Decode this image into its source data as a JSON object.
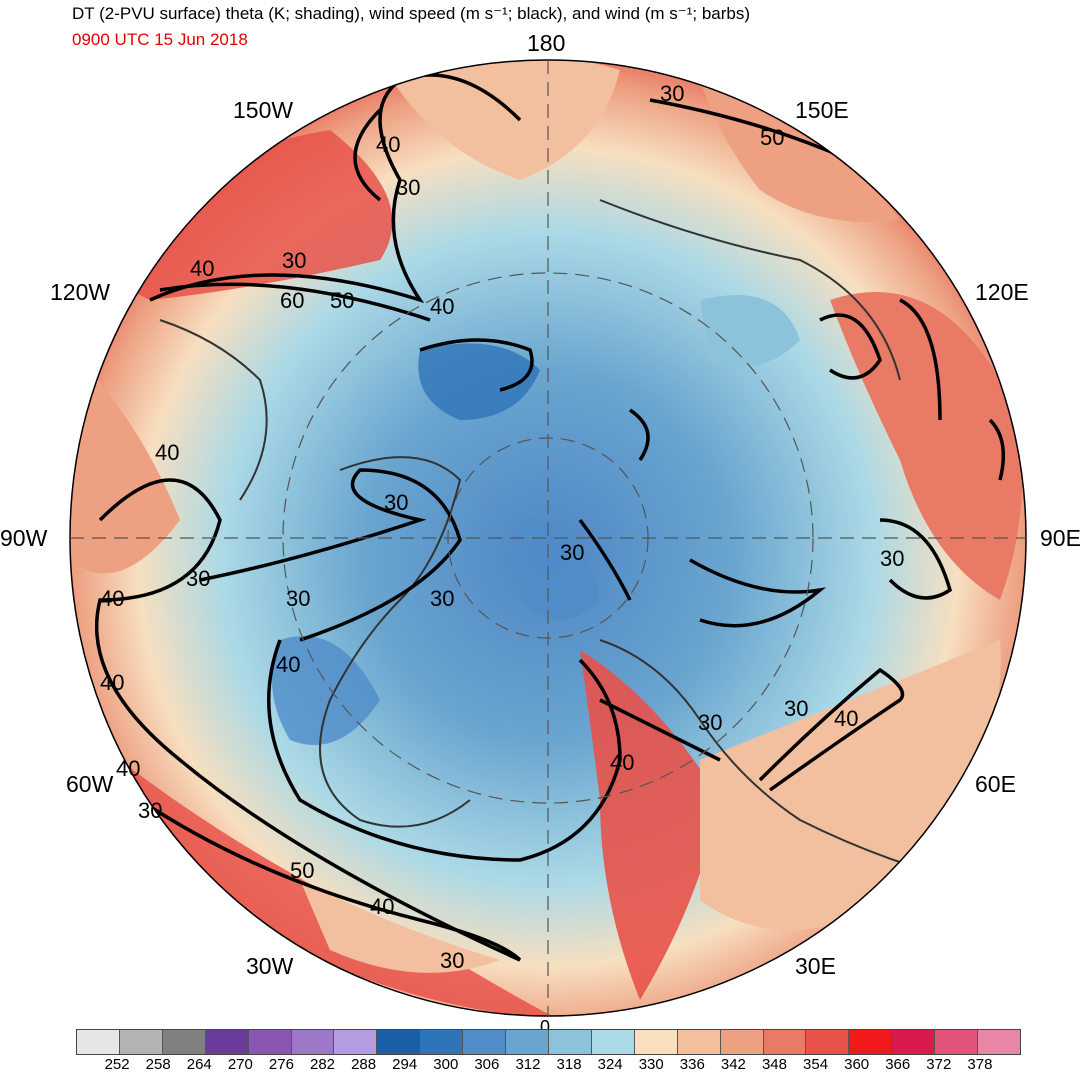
{
  "header": {
    "title": "DT (2-PVU surface) theta (K; shading), wind speed (m s⁻¹; black), and wind (m s⁻¹; barbs)",
    "valid_time": "0900 UTC 15 Jun 2018"
  },
  "map": {
    "projection": "north-polar-stereographic",
    "longitude_labels": [
      "180",
      "150E",
      "120E",
      "90E",
      "60E",
      "30E",
      "0",
      "30W",
      "60W",
      "90W",
      "120W",
      "150W"
    ],
    "wind_speed_contour_labels": [
      "30",
      "40",
      "50",
      "60"
    ],
    "colors": {
      "ocean_cold": "#4f86c6",
      "ocean_cool": "#a7d9e3",
      "warm": "#f2b28c",
      "hot": "#ea3b33",
      "contour": "#000000",
      "coastline": "#333333"
    }
  },
  "colorbar": {
    "ticks": [
      "252",
      "258",
      "264",
      "270",
      "276",
      "282",
      "288",
      "294",
      "300",
      "306",
      "312",
      "318",
      "324",
      "330",
      "336",
      "342",
      "348",
      "354",
      "360",
      "366",
      "372",
      "378"
    ],
    "colors": [
      "#e6e6e6",
      "#b3b3b3",
      "#808080",
      "#6a3d9a",
      "#8a56b4",
      "#9e78c8",
      "#b59be0",
      "#1b5fa8",
      "#2e74b8",
      "#4f8cc8",
      "#6aa5cf",
      "#8cc3da",
      "#abd9e6",
      "#f7dfc0",
      "#f3c09f",
      "#eda182",
      "#e87a66",
      "#e8524a",
      "#f01a1a",
      "#d81b4a",
      "#e0547a",
      "#e986a6"
    ]
  }
}
